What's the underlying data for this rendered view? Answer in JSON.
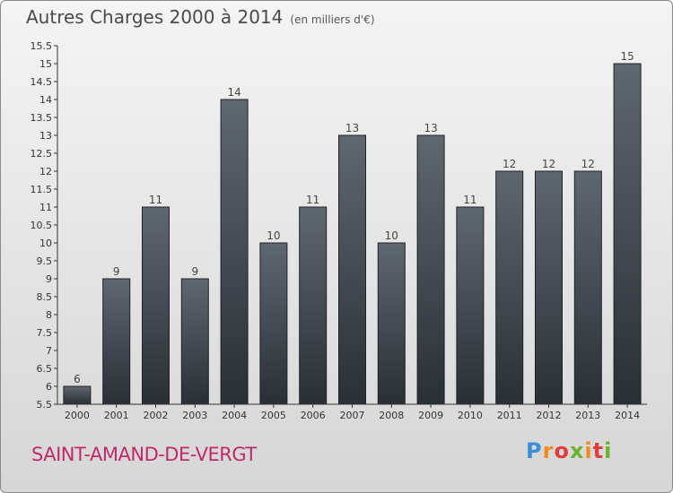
{
  "header": {
    "title": "Autres Charges 2000 à 2014",
    "subtitle": "(en milliers d'€)"
  },
  "commune": "SAINT-AMAND-DE-VERGT",
  "brand": {
    "logo_text": "Proxiti",
    "colors": [
      "#3b8ed8",
      "#f28a1c",
      "#e23d3d",
      "#6ab42d"
    ]
  },
  "chart_data": {
    "type": "bar",
    "title": "Autres Charges 2000 à 2014",
    "subtitle": "(en milliers d'€)",
    "xlabel": "",
    "ylabel": "",
    "categories": [
      "2000",
      "2001",
      "2002",
      "2003",
      "2004",
      "2005",
      "2006",
      "2007",
      "2008",
      "2009",
      "2010",
      "2011",
      "2012",
      "2013",
      "2014"
    ],
    "values": [
      6,
      9,
      11,
      9,
      14,
      10,
      11,
      13,
      10,
      13,
      11,
      12,
      12,
      12,
      15
    ],
    "ylim": [
      5.5,
      15.5
    ],
    "yticks": [
      "5.5",
      "6",
      "6.5",
      "7",
      "7.5",
      "8",
      "8.5",
      "9",
      "9.5",
      "10",
      "10.5",
      "11",
      "11.5",
      "12",
      "12.5",
      "13",
      "13.5",
      "14",
      "14.5",
      "15",
      "15.5"
    ],
    "grid": false,
    "legend": "none",
    "colors": {
      "bar_top": "#5f676f",
      "bar_bottom": "#2a2f35",
      "axis": "#333333"
    }
  }
}
